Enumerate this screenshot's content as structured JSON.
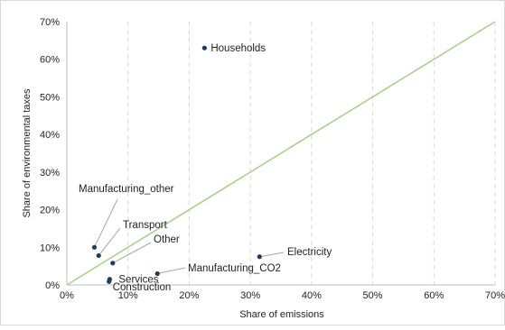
{
  "chart_data": {
    "type": "scatter",
    "xlabel": "Share of emissions",
    "ylabel": "Share of environmental taxes",
    "xlim": [
      0,
      70
    ],
    "ylim": [
      0,
      70
    ],
    "x_ticks": [
      "0%",
      "10%",
      "20%",
      "30%",
      "40%",
      "50%",
      "60%",
      "70%"
    ],
    "y_ticks": [
      "0%",
      "10%",
      "20%",
      "30%",
      "40%",
      "50%",
      "60%",
      "70%"
    ],
    "grid": "dashed vertical",
    "reference_line": {
      "from": [
        0,
        0
      ],
      "to": [
        70,
        70
      ],
      "color": "#a9d18e"
    },
    "point_color": "#1f3864",
    "points": [
      {
        "label": "Households",
        "x": 22.5,
        "y": 63
      },
      {
        "label": "Manufacturing_other",
        "x": 4.5,
        "y": 10
      },
      {
        "label": "Transport",
        "x": 5.2,
        "y": 7.8
      },
      {
        "label": "Other",
        "x": 7.5,
        "y": 5.8
      },
      {
        "label": "Services",
        "x": 7.0,
        "y": 1.5
      },
      {
        "label": "Construction",
        "x": 6.9,
        "y": 0.9
      },
      {
        "label": "Manufacturing_CO2",
        "x": 14.8,
        "y": 3.0
      },
      {
        "label": "Electricity",
        "x": 31.5,
        "y": 7.5
      }
    ]
  }
}
